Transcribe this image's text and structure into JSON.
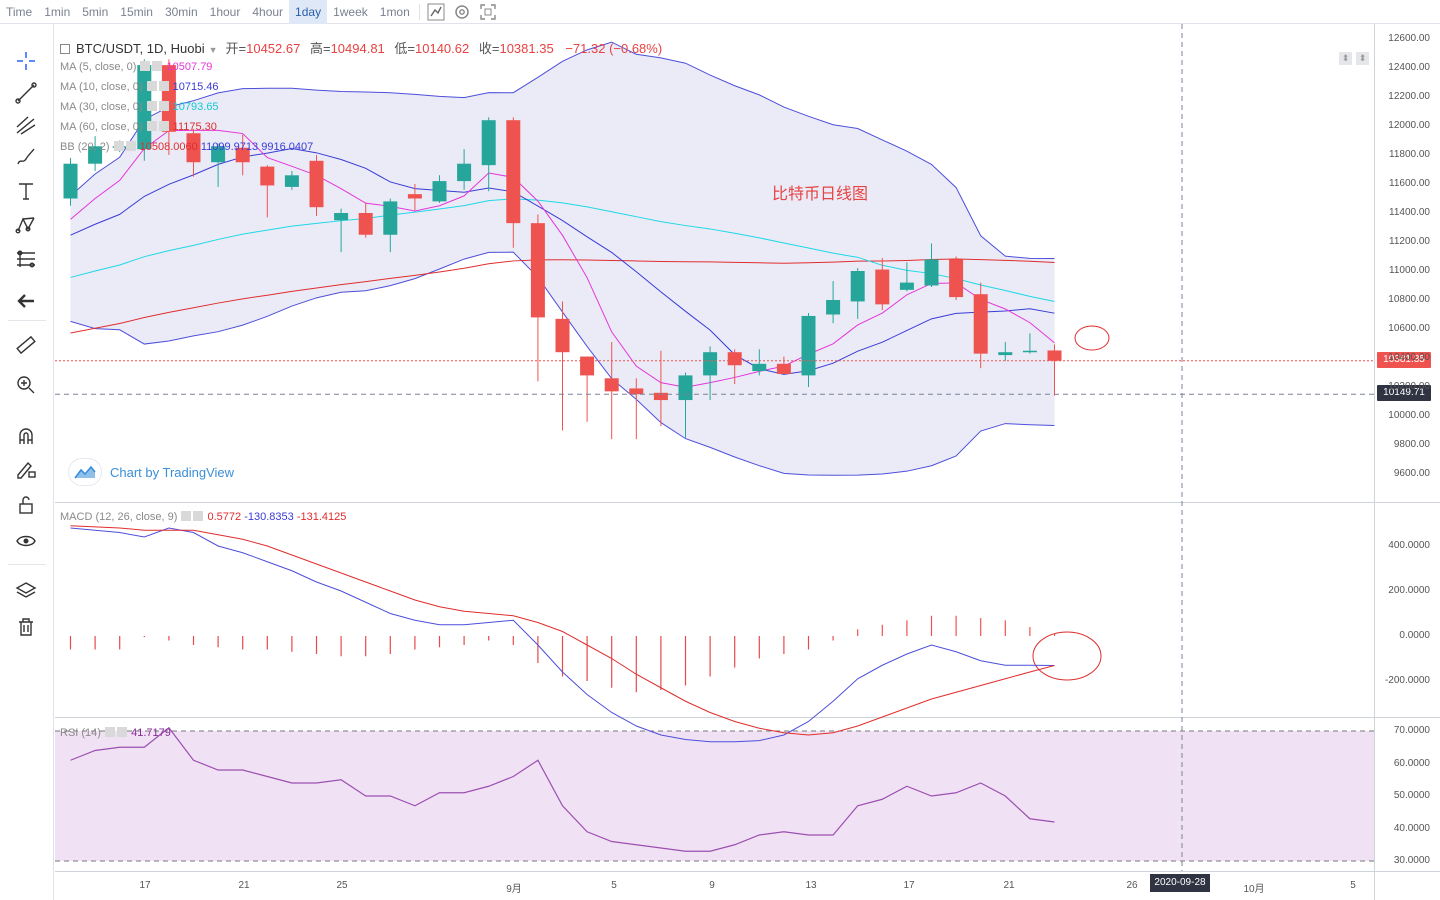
{
  "toolbar": {
    "items": [
      "Time",
      "1min",
      "5min",
      "15min",
      "30min",
      "1hour",
      "4hour",
      "1day",
      "1week",
      "1mon"
    ],
    "active": "1day",
    "icons": [
      "chart-style-icon",
      "settings-icon",
      "fullscreen-icon"
    ]
  },
  "leftbar": {
    "tools": [
      "crosshair-icon",
      "trendline-icon",
      "pitchfork-icon",
      "brush-icon",
      "text-icon",
      "pattern-icon",
      "fib-icon",
      "back-arrow-icon",
      "ruler-icon",
      "zoom-icon",
      "magnet-icon",
      "lock-draw-icon",
      "lock-icon",
      "eye-icon",
      "layers-icon",
      "trash-icon"
    ]
  },
  "header": {
    "symbol": "BTC/USDT, 1D, Huobi",
    "open_label": "开=",
    "open": "10452.67",
    "high_label": "高=",
    "high": "10494.81",
    "low_label": "低=",
    "low": "10140.62",
    "close_label": "收=",
    "close": "10381.35",
    "change": "−71.32 (−0.68%)"
  },
  "legends": {
    "ma5": {
      "label": "MA (5, close, 0)",
      "value": "10507.79",
      "color": "#e535d9"
    },
    "ma10": {
      "label": "MA (10, close, 0)",
      "value": "10715.46",
      "color": "#3b3bd6"
    },
    "ma30": {
      "label": "MA (30, close, 0)",
      "value": "10793.65",
      "color": "#1fd8e6"
    },
    "ma60": {
      "label": "MA (60, close, 0)",
      "value": "11175.30",
      "color": "#e02d2d"
    },
    "bb": {
      "label": "BB (20, 2)",
      "v1": "10508.0060",
      "v2": "11099.9713",
      "v3": "9916.0407"
    },
    "macd": {
      "label": "MACD (12, 26, close, 9)",
      "v1": "0.5772",
      "v2": "-130.8353",
      "v3": "-131.4125"
    },
    "rsi": {
      "label": "RSI (14)",
      "value": "41.7179"
    }
  },
  "watermark": "Chart by TradingView",
  "annotation": "比特币日线图",
  "price_badges": {
    "last": "10381.35",
    "last_color": "#ef5350",
    "cross": "10149.71"
  },
  "date_badge": "2020-09-28",
  "colors": {
    "up": "#26a69a",
    "down": "#ef5350",
    "bb_fill": "#d8daf0",
    "rsi_fill": "#f0e2f4"
  },
  "chart_data": {
    "type": "candlestick",
    "price_axis": [
      "12600.00",
      "12400.00",
      "12200.00",
      "12000.00",
      "11800.00",
      "11600.00",
      "11400.00",
      "11200.00",
      "11000.00",
      "10800.00",
      "10600.00",
      "10400.00",
      "10200.00",
      "10000.00",
      "9800.00",
      "9600.00"
    ],
    "macd_axis": [
      "400.0000",
      "200.0000",
      "0.0000",
      "-200.0000"
    ],
    "rsi_axis": [
      "70.0000",
      "60.0000",
      "50.0000",
      "40.0000",
      "30.0000"
    ],
    "time_axis": [
      "17",
      "21",
      "25",
      "9月",
      "5",
      "9",
      "13",
      "17",
      "21",
      "26",
      "10月",
      "5"
    ],
    "candles": [
      [
        11500,
        11740,
        11450,
        11780
      ],
      [
        11740,
        11860,
        11690,
        11930
      ],
      [
        11860,
        11860,
        11820,
        11900
      ],
      [
        11840,
        12420,
        11760,
        12460
      ],
      [
        12420,
        11960,
        11800,
        12460
      ],
      [
        11950,
        11750,
        11650,
        11980
      ],
      [
        11750,
        11860,
        11580,
        11880
      ],
      [
        11850,
        11750,
        11660,
        11940
      ],
      [
        11720,
        11590,
        11370,
        11730
      ],
      [
        11580,
        11660,
        11560,
        11690
      ],
      [
        11760,
        11440,
        11380,
        11800
      ],
      [
        11350,
        11400,
        11130,
        11430
      ],
      [
        11400,
        11250,
        11230,
        11470
      ],
      [
        11250,
        11480,
        11130,
        11500
      ],
      [
        11530,
        11500,
        11420,
        11600
      ],
      [
        11480,
        11620,
        11470,
        11660
      ],
      [
        11620,
        11740,
        11560,
        11840
      ],
      [
        11730,
        12040,
        11550,
        12060
      ],
      [
        12040,
        11330,
        11160,
        12060
      ],
      [
        11330,
        10680,
        10240,
        11390
      ],
      [
        10670,
        10440,
        9900,
        10790
      ],
      [
        10410,
        10280,
        9960,
        10410
      ],
      [
        10260,
        10170,
        9840,
        10510
      ],
      [
        10190,
        10150,
        9840,
        10260
      ],
      [
        10160,
        10110,
        9930,
        10450
      ],
      [
        10110,
        10280,
        9850,
        10300
      ],
      [
        10280,
        10440,
        10110,
        10480
      ],
      [
        10440,
        10350,
        10220,
        10460
      ],
      [
        10310,
        10360,
        10280,
        10460
      ],
      [
        10360,
        10290,
        10290,
        10410
      ],
      [
        10280,
        10690,
        10200,
        10710
      ],
      [
        10700,
        10800,
        10640,
        10930
      ],
      [
        10790,
        11000,
        10670,
        11020
      ],
      [
        11010,
        10770,
        10730,
        11090
      ],
      [
        10870,
        10920,
        10860,
        11060
      ],
      [
        10900,
        11080,
        10890,
        11190
      ],
      [
        11080,
        10820,
        10800,
        11100
      ],
      [
        10840,
        10430,
        10330,
        10920
      ],
      [
        10420,
        10440,
        10380,
        10510
      ],
      [
        10440,
        10450,
        10430,
        10570
      ],
      [
        10452,
        10381,
        10140,
        10494
      ]
    ],
    "macd_hist": [
      -60,
      -60,
      -60,
      -5,
      -20,
      -40,
      -50,
      -60,
      -60,
      -70,
      -80,
      -90,
      -90,
      -80,
      -60,
      -50,
      -40,
      -20,
      -40,
      -120,
      -180,
      -200,
      -230,
      -250,
      -240,
      -220,
      -180,
      -140,
      -100,
      -80,
      -60,
      -20,
      30,
      50,
      70,
      90,
      90,
      80,
      70,
      40,
      10
    ],
    "macd_line": [
      480,
      470,
      460,
      440,
      480,
      460,
      400,
      370,
      330,
      290,
      240,
      200,
      150,
      100,
      70,
      50,
      50,
      60,
      70,
      -40,
      -160,
      -260,
      -340,
      -400,
      -440,
      -460,
      -470,
      -470,
      -465,
      -440,
      -380,
      -290,
      -190,
      -130,
      -80,
      -40,
      -70,
      -110,
      -130,
      -130,
      -131
    ],
    "signal_line": [
      490,
      485,
      480,
      470,
      470,
      470,
      450,
      430,
      400,
      360,
      320,
      280,
      240,
      200,
      160,
      130,
      110,
      100,
      90,
      60,
      20,
      -40,
      -100,
      -170,
      -230,
      -290,
      -340,
      -380,
      -410,
      -430,
      -440,
      -430,
      -400,
      -360,
      -320,
      -280,
      -250,
      -220,
      -190,
      -160,
      -131
    ],
    "rsi": [
      61,
      64,
      65,
      65,
      71,
      61,
      58,
      58,
      56,
      54,
      54,
      55,
      50,
      50,
      47,
      51,
      51,
      53,
      56,
      61,
      47,
      39,
      36,
      35,
      34,
      33,
      33,
      35,
      38,
      39,
      38,
      38,
      47,
      49,
      53,
      50,
      51,
      54,
      50,
      43,
      42
    ]
  }
}
